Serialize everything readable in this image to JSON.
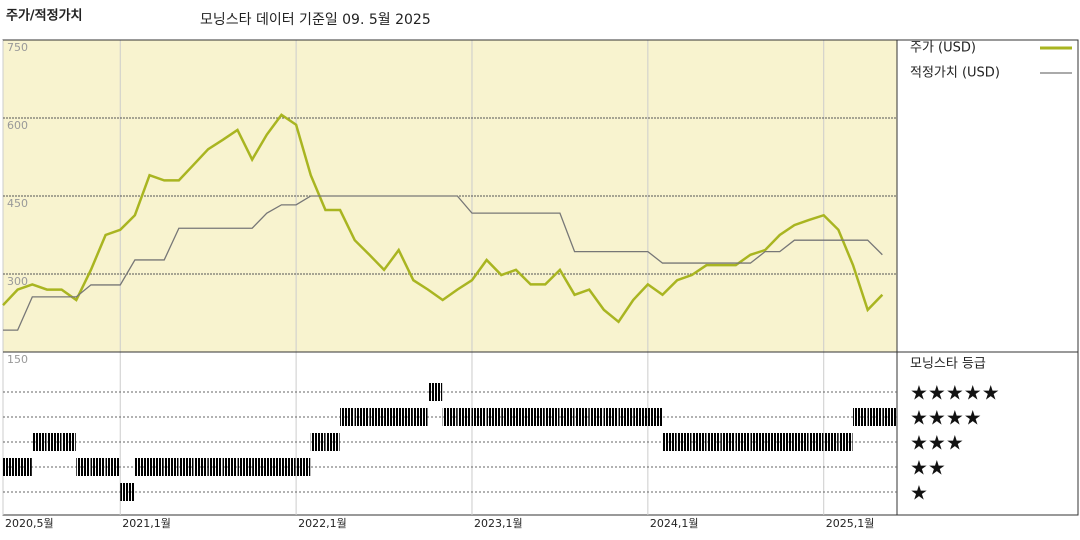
{
  "chart_data": {
    "type": "line",
    "title": "주가/적정가치",
    "subtitle": "모닝스타 데이터 기준일 09. 5월 2025",
    "x": [
      "2020-05",
      "2020-06",
      "2020-07",
      "2020-08",
      "2020-09",
      "2020-10",
      "2020-11",
      "2020-12",
      "2021-01",
      "2021-02",
      "2021-03",
      "2021-04",
      "2021-05",
      "2021-06",
      "2021-07",
      "2021-08",
      "2021-09",
      "2021-10",
      "2021-11",
      "2021-12",
      "2022-01",
      "2022-02",
      "2022-03",
      "2022-04",
      "2022-05",
      "2022-06",
      "2022-07",
      "2022-08",
      "2022-09",
      "2022-10",
      "2022-11",
      "2022-12",
      "2023-01",
      "2023-02",
      "2023-03",
      "2023-04",
      "2023-05",
      "2023-06",
      "2023-07",
      "2023-08",
      "2023-09",
      "2023-10",
      "2023-11",
      "2023-12",
      "2024-01",
      "2024-02",
      "2024-03",
      "2024-04",
      "2024-05",
      "2024-06",
      "2024-07",
      "2024-08",
      "2024-09",
      "2024-10",
      "2024-11",
      "2024-12",
      "2025-01",
      "2025-02",
      "2025-03",
      "2025-04",
      "2025-05"
    ],
    "xlim": [
      "2020-05",
      "2025-06"
    ],
    "xticks": [
      {
        "value": "2020-05",
        "label": "2020,5월"
      },
      {
        "value": "2021-01",
        "label": "2021,1월"
      },
      {
        "value": "2022-01",
        "label": "2022,1월"
      },
      {
        "value": "2023-01",
        "label": "2023,1월"
      },
      {
        "value": "2024-01",
        "label": "2024,1월"
      },
      {
        "value": "2025-01",
        "label": "2025,1월"
      }
    ],
    "ylim": [
      150,
      750
    ],
    "yticks": [
      150,
      300,
      450,
      600,
      750
    ],
    "series": [
      {
        "name": "주가 (USD)",
        "color": "#a9b521",
        "values": [
          240,
          270,
          280,
          270,
          270,
          250,
          308,
          375,
          385,
          413,
          490,
          480,
          480,
          510,
          540,
          558,
          577,
          520,
          568,
          606,
          587,
          490,
          423,
          423,
          365,
          337,
          308,
          346,
          288,
          270,
          250,
          270,
          288,
          327,
          298,
          308,
          280,
          280,
          308,
          260,
          270,
          231,
          208,
          250,
          280,
          260,
          288,
          298,
          317,
          317,
          317,
          337,
          346,
          375,
          394,
          404,
          413,
          385,
          317,
          231,
          260
        ]
      },
      {
        "name": "적정가치 (USD)",
        "color": "#777777",
        "values": [
          192,
          192,
          256,
          256,
          256,
          256,
          279,
          279,
          279,
          327,
          327,
          327,
          388,
          388,
          388,
          388,
          388,
          388,
          417,
          433,
          433,
          450,
          450,
          450,
          450,
          450,
          450,
          450,
          450,
          450,
          450,
          450,
          417,
          417,
          417,
          417,
          417,
          417,
          417,
          343,
          343,
          343,
          343,
          343,
          343,
          321,
          321,
          321,
          321,
          321,
          321,
          321,
          343,
          343,
          365,
          365,
          365,
          365,
          365,
          365,
          337
        ]
      }
    ],
    "rating": {
      "title": "모닝스타 등급",
      "color": "#2a2a2a",
      "top_color": "#3a8a6e",
      "levels": [
        {
          "value": 5,
          "label": "★★★★★"
        },
        {
          "value": 4,
          "label": "★★★★"
        },
        {
          "value": 3,
          "label": "★★★"
        },
        {
          "value": 2,
          "label": "★★"
        },
        {
          "value": 1,
          "label": "★"
        }
      ],
      "values": [
        2,
        2,
        3,
        3,
        3,
        2,
        2,
        2,
        1,
        2,
        2,
        2,
        2,
        2,
        2,
        2,
        2,
        2,
        2,
        2,
        2,
        3,
        3,
        4,
        4,
        4,
        4,
        4,
        4,
        5,
        4,
        4,
        4,
        4,
        4,
        4,
        4,
        4,
        4,
        4,
        4,
        4,
        4,
        4,
        4,
        3,
        3,
        3,
        3,
        3,
        3,
        3,
        3,
        3,
        3,
        3,
        3,
        3,
        4,
        4,
        4
      ]
    }
  }
}
